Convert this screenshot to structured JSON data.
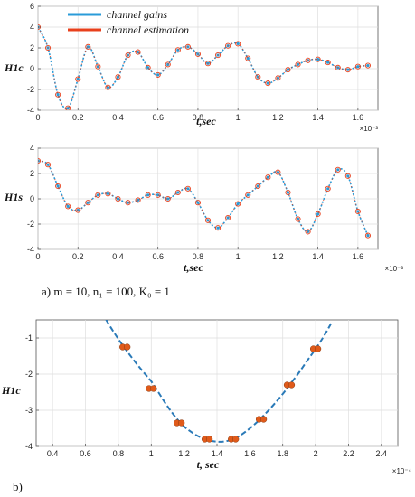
{
  "chart_data": [
    {
      "id": "top",
      "type": "line",
      "xlabel": "t,sec",
      "ylabel": "H1c",
      "x_exponent": "×10⁻³",
      "xlim": [
        0,
        1.7
      ],
      "ylim": [
        -4,
        6
      ],
      "xticks": [
        "0",
        "0.2",
        "0.4",
        "0.6",
        "0.8",
        "1",
        "1.2",
        "1.4",
        "1.6"
      ],
      "yticks": [
        "-4",
        "-2",
        "0",
        "2",
        "4",
        "6"
      ],
      "grid": true,
      "legend": {
        "placement": "top-left",
        "entries": [
          "channel gains",
          "channel estimation"
        ]
      },
      "series": [
        {
          "name": "channel gains",
          "color": "#2a9bd8",
          "style": "dash",
          "x": [
            0,
            0.05,
            0.1,
            0.15,
            0.2,
            0.25,
            0.3,
            0.35,
            0.4,
            0.45,
            0.5,
            0.55,
            0.6,
            0.65,
            0.7,
            0.75,
            0.8,
            0.85,
            0.9,
            0.95,
            1.0,
            1.05,
            1.1,
            1.15,
            1.2,
            1.25,
            1.3,
            1.35,
            1.4,
            1.45,
            1.5,
            1.55,
            1.6,
            1.65
          ],
          "y": [
            4.0,
            2.0,
            -2.5,
            -3.8,
            -1.0,
            2.1,
            0.2,
            -1.8,
            -0.8,
            1.3,
            1.6,
            0.1,
            -0.6,
            0.4,
            1.8,
            2.1,
            1.4,
            0.5,
            1.3,
            2.2,
            2.4,
            1.0,
            -0.8,
            -1.4,
            -0.9,
            -0.1,
            0.4,
            0.8,
            0.9,
            0.6,
            0.1,
            -0.1,
            0.2,
            0.3
          ]
        },
        {
          "name": "channel estimation",
          "color": "#e8401c",
          "style": "solid",
          "x": [
            0,
            0.05,
            0.1,
            0.15,
            0.2,
            0.25,
            0.3,
            0.35,
            0.4,
            0.45,
            0.5,
            0.55,
            0.6,
            0.65,
            0.7,
            0.75,
            0.8,
            0.85,
            0.9,
            0.95,
            1.0,
            1.05,
            1.1,
            1.15,
            1.2,
            1.25,
            1.3,
            1.35,
            1.4,
            1.45,
            1.5,
            1.55,
            1.6,
            1.65
          ],
          "y": [
            4.0,
            2.0,
            -2.5,
            -3.8,
            -1.0,
            2.1,
            0.2,
            -1.8,
            -0.8,
            1.3,
            1.6,
            0.1,
            -0.6,
            0.4,
            1.8,
            2.1,
            1.4,
            0.5,
            1.3,
            2.2,
            2.4,
            1.0,
            -0.8,
            -1.4,
            -0.9,
            -0.1,
            0.4,
            0.8,
            0.9,
            0.6,
            0.1,
            -0.1,
            0.2,
            0.3
          ]
        }
      ]
    },
    {
      "id": "middle",
      "type": "line",
      "xlabel": "t,sec",
      "ylabel": "H1s",
      "x_exponent": "×10⁻³",
      "xlim": [
        0,
        1.7
      ],
      "ylim": [
        -4,
        4
      ],
      "xticks": [
        "0",
        "0.2",
        "0.4",
        "0.6",
        "0.8",
        "1",
        "1.2",
        "1.4",
        "1.6"
      ],
      "yticks": [
        "-4",
        "-2",
        "0",
        "2",
        "4"
      ],
      "grid": true,
      "series": [
        {
          "name": "channel gains",
          "color": "#2a9bd8",
          "style": "dash",
          "x": [
            0,
            0.05,
            0.1,
            0.15,
            0.2,
            0.25,
            0.3,
            0.35,
            0.4,
            0.45,
            0.5,
            0.55,
            0.6,
            0.65,
            0.7,
            0.75,
            0.8,
            0.85,
            0.9,
            0.95,
            1.0,
            1.05,
            1.1,
            1.15,
            1.2,
            1.25,
            1.3,
            1.35,
            1.4,
            1.45,
            1.5,
            1.55,
            1.6,
            1.65
          ],
          "y": [
            3.0,
            2.7,
            1.0,
            -0.6,
            -0.9,
            -0.3,
            0.3,
            0.4,
            0.0,
            -0.3,
            -0.1,
            0.3,
            0.3,
            0.0,
            0.5,
            0.8,
            -0.3,
            -1.7,
            -2.3,
            -1.5,
            -0.4,
            0.3,
            1.0,
            1.7,
            2.1,
            0.5,
            -1.6,
            -2.6,
            -1.2,
            0.8,
            2.3,
            1.8,
            -1.0,
            -2.9
          ]
        },
        {
          "name": "channel estimation",
          "color": "#e8401c",
          "style": "solid",
          "x": [
            0,
            0.05,
            0.1,
            0.15,
            0.2,
            0.25,
            0.3,
            0.35,
            0.4,
            0.45,
            0.5,
            0.55,
            0.6,
            0.65,
            0.7,
            0.75,
            0.8,
            0.85,
            0.9,
            0.95,
            1.0,
            1.05,
            1.1,
            1.15,
            1.2,
            1.25,
            1.3,
            1.35,
            1.4,
            1.45,
            1.5,
            1.55,
            1.6,
            1.65
          ],
          "y": [
            3.0,
            2.7,
            1.0,
            -0.6,
            -0.9,
            -0.3,
            0.3,
            0.4,
            0.0,
            -0.3,
            -0.1,
            0.3,
            0.3,
            0.0,
            0.5,
            0.8,
            -0.3,
            -1.7,
            -2.3,
            -1.5,
            -0.4,
            0.3,
            1.0,
            1.7,
            2.1,
            0.5,
            -1.6,
            -2.6,
            -1.2,
            0.8,
            2.3,
            1.8,
            -1.0,
            -2.9
          ]
        }
      ]
    },
    {
      "id": "bottom",
      "type": "line",
      "xlabel": "t, sec",
      "ylabel": "H1c",
      "x_exponent": "×10⁻⁴",
      "xlim": [
        0.3,
        2.5
      ],
      "ylim": [
        -4,
        -0.5
      ],
      "xticks": [
        "0.4",
        "0.6",
        "0.8",
        "1",
        "1.2",
        "1.4",
        "1.6",
        "1.8",
        "2",
        "2.2",
        "2.4"
      ],
      "yticks": [
        "-4",
        "-3",
        "-2",
        "-1"
      ],
      "grid": true,
      "series": [
        {
          "name": "channel gains",
          "color": "#2a7ab8",
          "style": "dash",
          "x": [
            0.7,
            0.75,
            0.8,
            0.85,
            0.9,
            0.95,
            1.0,
            1.05,
            1.1,
            1.15,
            1.2,
            1.25,
            1.3,
            1.35,
            1.4,
            1.45,
            1.5,
            1.55,
            1.6,
            1.65,
            1.7,
            1.75,
            1.8,
            1.85,
            1.9,
            1.95,
            2.0,
            2.05,
            2.1
          ],
          "y": [
            -0.3,
            -0.68,
            -1.03,
            -1.35,
            -1.65,
            -1.93,
            -2.2,
            -2.55,
            -2.9,
            -3.2,
            -3.45,
            -3.62,
            -3.75,
            -3.83,
            -3.87,
            -3.86,
            -3.8,
            -3.67,
            -3.5,
            -3.3,
            -3.07,
            -2.82,
            -2.55,
            -2.25,
            -1.95,
            -1.62,
            -1.3,
            -0.95,
            -0.55
          ]
        },
        {
          "name": "channel estimation",
          "color": "#e05a1a",
          "style": "markers",
          "x": [
            0.84,
            1.0,
            1.17,
            1.34,
            1.5,
            1.67,
            1.84,
            2.0
          ],
          "y": [
            -1.25,
            -2.4,
            -3.35,
            -3.8,
            -3.8,
            -3.25,
            -2.3,
            -1.3
          ]
        }
      ]
    }
  ],
  "captions": {
    "a": "a)  m = 10, n₁ = 100, K₀ = 1",
    "b": "b)"
  }
}
